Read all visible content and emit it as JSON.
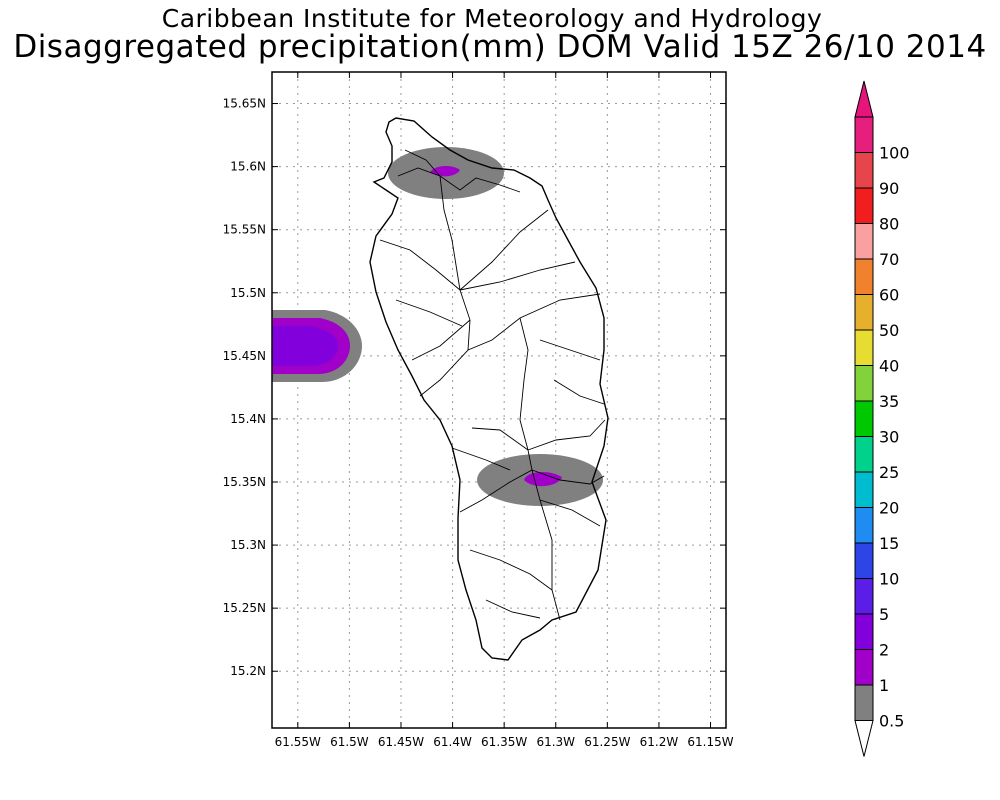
{
  "header": {
    "title": "Caribbean Institute for Meteorology and Hydrology",
    "subtitle": "Disaggregated precipitation(mm) DOM Valid 15Z 26/10 2014"
  },
  "map": {
    "region": "Dominica",
    "lon_range": [
      -61.575,
      -61.135
    ],
    "lat_range": [
      15.155,
      15.675
    ],
    "lat_ticks": [
      "15.65N",
      "15.6N",
      "15.55N",
      "15.5N",
      "15.45N",
      "15.4N",
      "15.35N",
      "15.3N",
      "15.25N",
      "15.2N"
    ],
    "lat_values": [
      15.65,
      15.6,
      15.55,
      15.5,
      15.45,
      15.4,
      15.35,
      15.3,
      15.25,
      15.2
    ],
    "lon_ticks": [
      "61.55W",
      "61.5W",
      "61.45W",
      "61.4W",
      "61.35W",
      "61.3W",
      "61.25W",
      "61.2W",
      "61.15W"
    ],
    "lon_values": [
      -61.55,
      -61.5,
      -61.45,
      -61.4,
      -61.35,
      -61.3,
      -61.25,
      -61.2,
      -61.15
    ],
    "grid": "dotted"
  },
  "precip_cells": [
    {
      "label": "north",
      "lon": -61.405,
      "lat": 15.596,
      "max_class": "1-2"
    },
    {
      "label": "west-offshore",
      "lon": -61.55,
      "lat": 15.457,
      "max_class": "2-5"
    },
    {
      "label": "south-central",
      "lon": -61.307,
      "lat": 15.352,
      "max_class": "1-2"
    }
  ],
  "colorbar": {
    "levels": [
      "0.5",
      "1",
      "2",
      "5",
      "10",
      "15",
      "20",
      "25",
      "30",
      "35",
      "40",
      "50",
      "60",
      "70",
      "80",
      "90",
      "100"
    ],
    "colors": [
      "#808080",
      "#a000c8",
      "#8200dc",
      "#5a1ee6",
      "#2d44e6",
      "#1e8cf0",
      "#00bcd0",
      "#00d28c",
      "#00c800",
      "#82d23c",
      "#e6dc32",
      "#e6af2d",
      "#f0822d",
      "#faa0a0",
      "#f01e1e",
      "#e6464b",
      "#e61e7c"
    ],
    "lower_cap": "#ffffff",
    "upper_cap": "#e6147d"
  }
}
